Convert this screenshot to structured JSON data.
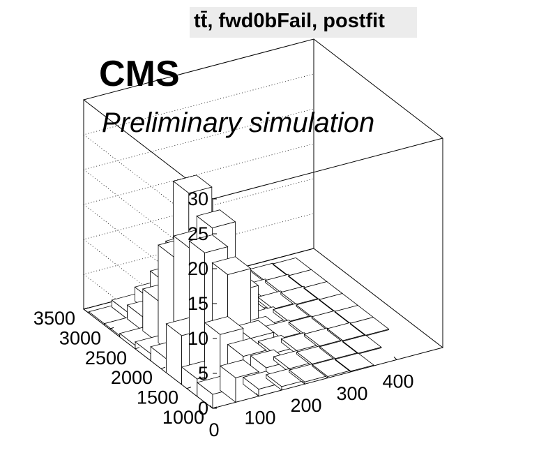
{
  "chart_data": {
    "type": "lego3d",
    "title": "tt̄, fwd0bFail, postfit",
    "annotations": {
      "experiment": "CMS",
      "status": "Preliminary simulation"
    },
    "xlabel": "",
    "ylabel": "",
    "zlabel": "",
    "x_bin_edges": [
      0,
      50,
      100,
      150,
      200,
      250,
      300,
      350,
      400,
      450,
      500
    ],
    "y_bin_edges": [
      1000,
      1300,
      1600,
      1900,
      2200,
      2500,
      2800,
      3100,
      3400
    ],
    "xlim": [
      0,
      500
    ],
    "ylim": [
      1000,
      3500
    ],
    "zlim": [
      0,
      30
    ],
    "x_ticks": [
      "0",
      "100",
      "200",
      "300",
      "400"
    ],
    "x_tick_values": [
      0,
      100,
      200,
      300,
      400
    ],
    "y_ticks": [
      "1000",
      "1500",
      "2000",
      "2500",
      "3000",
      "3500"
    ],
    "y_tick_values": [
      1000,
      1500,
      2000,
      2500,
      3000,
      3500
    ],
    "z_ticks": [
      "0",
      "5",
      "10",
      "15",
      "20",
      "25",
      "30"
    ],
    "z_tick_values": [
      0,
      5,
      10,
      15,
      20,
      25,
      30
    ],
    "grid": true,
    "values": [
      [
        2.0,
        3.5,
        1.0,
        0.5,
        0.3,
        0.2,
        0.1,
        0.0,
        0.0,
        0.0
      ],
      [
        2.5,
        8.0,
        4.0,
        1.5,
        0.5,
        0.3,
        0.2,
        0.1,
        0.0,
        0.0
      ],
      [
        7.0,
        18.0,
        14.0,
        4.0,
        1.0,
        0.5,
        0.3,
        0.2,
        0.1,
        0.0
      ],
      [
        2.0,
        17.0,
        19.0,
        9.0,
        2.0,
        0.6,
        0.3,
        0.2,
        0.1,
        0.0
      ],
      [
        1.0,
        14.0,
        13.0,
        10.0,
        3.0,
        0.8,
        0.4,
        0.2,
        0.1,
        0.0
      ],
      [
        0.5,
        6.0,
        12.0,
        12.0,
        3.0,
        1.0,
        0.5,
        0.3,
        0.1,
        0.0
      ],
      [
        0.2,
        2.0,
        6.0,
        18.0,
        2.0,
        1.0,
        0.5,
        0.3,
        0.1,
        0.0
      ],
      [
        0.2,
        1.0,
        2.0,
        3.5,
        1.0,
        0.5,
        0.3,
        0.2,
        0.1,
        0.0
      ]
    ]
  }
}
